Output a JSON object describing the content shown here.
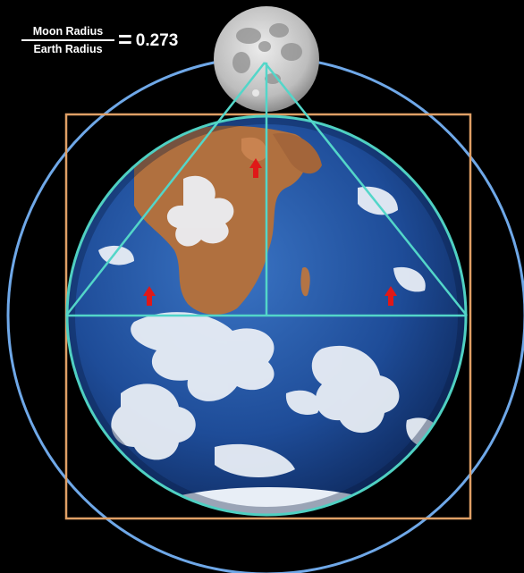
{
  "formula": {
    "numerator": "Moon Radius",
    "denominator": "Earth Radius",
    "equals": "=",
    "value": "0.273"
  },
  "colors": {
    "background": "#000000",
    "outer_circle": "#6fa8e8",
    "square": "#e0a066",
    "triangle": "#53d6c9",
    "earth_outline": "#4fd0c2",
    "ocean": "#1f4f9c",
    "continent": "#b0703f",
    "cloud": "#eef2f8",
    "moon": "#cfcfcf",
    "markers": "#e01818"
  },
  "elements": {
    "moon": "moon-image",
    "earth": "earth-image",
    "markers": [
      "red-arrow-marker",
      "red-arrow-marker",
      "red-arrow-marker"
    ]
  }
}
